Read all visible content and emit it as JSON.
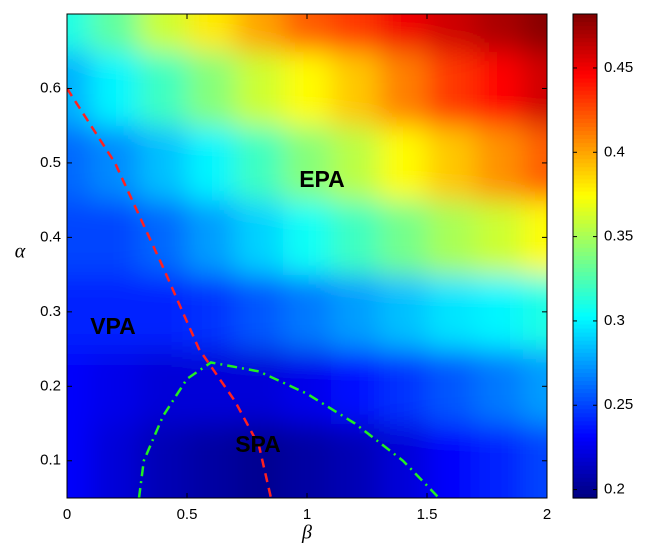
{
  "chart_data": {
    "type": "heatmap",
    "xlabel": "β",
    "ylabel": "α",
    "x": [
      0,
      0.2,
      0.4,
      0.6,
      0.8,
      1.0,
      1.2,
      1.4,
      1.6,
      1.8,
      2.0
    ],
    "y": [
      0.1,
      0.2,
      0.3,
      0.4,
      0.5,
      0.6,
      0.7
    ],
    "z": [
      [
        0.23,
        0.22,
        0.21,
        0.205,
        0.2,
        0.205,
        0.21,
        0.22,
        0.23,
        0.24,
        0.25
      ],
      [
        0.23,
        0.225,
        0.22,
        0.22,
        0.22,
        0.225,
        0.235,
        0.245,
        0.255,
        0.265,
        0.275
      ],
      [
        0.24,
        0.24,
        0.24,
        0.245,
        0.255,
        0.265,
        0.275,
        0.285,
        0.295,
        0.3,
        0.31
      ],
      [
        0.25,
        0.25,
        0.26,
        0.275,
        0.29,
        0.305,
        0.32,
        0.335,
        0.35,
        0.36,
        0.375
      ],
      [
        0.26,
        0.27,
        0.285,
        0.3,
        0.32,
        0.34,
        0.355,
        0.375,
        0.39,
        0.405,
        0.42
      ],
      [
        0.28,
        0.3,
        0.32,
        0.34,
        0.36,
        0.375,
        0.39,
        0.41,
        0.43,
        0.445,
        0.46
      ],
      [
        0.31,
        0.33,
        0.36,
        0.38,
        0.4,
        0.42,
        0.43,
        0.45,
        0.46,
        0.47,
        0.48
      ]
    ],
    "colormap": "jet",
    "xlim": [
      0,
      2
    ],
    "ylim": [
      0.05,
      0.7
    ],
    "xticks": [
      0,
      0.5,
      1,
      1.5,
      2
    ],
    "yticks": [
      0.1,
      0.2,
      0.3,
      0.4,
      0.5,
      0.6
    ],
    "clim": [
      0.195,
      0.482
    ],
    "cticks": [
      0.2,
      0.25,
      0.3,
      0.35,
      0.4,
      0.45
    ],
    "boundaries": [
      {
        "color": "#ff2020",
        "style": "dashed",
        "x": [
          0,
          0.2,
          0.4,
          0.55,
          0.7,
          0.8,
          0.85
        ],
        "y": [
          0.6,
          0.5,
          0.36,
          0.25,
          0.18,
          0.12,
          0.05
        ]
      },
      {
        "color": "#22ee22",
        "style": "dashdot",
        "x": [
          0.3,
          0.32,
          0.4,
          0.5,
          0.6,
          0.8,
          1.0,
          1.2,
          1.4,
          1.55
        ],
        "y": [
          0.05,
          0.1,
          0.16,
          0.21,
          0.232,
          0.22,
          0.19,
          0.15,
          0.1,
          0.05
        ]
      }
    ],
    "annotations": [
      {
        "text": "EPA",
        "color": "#000000"
      },
      {
        "text": "VPA",
        "color": "#ff1a1a"
      },
      {
        "text": "SPA",
        "color": "#22dd22"
      }
    ]
  }
}
